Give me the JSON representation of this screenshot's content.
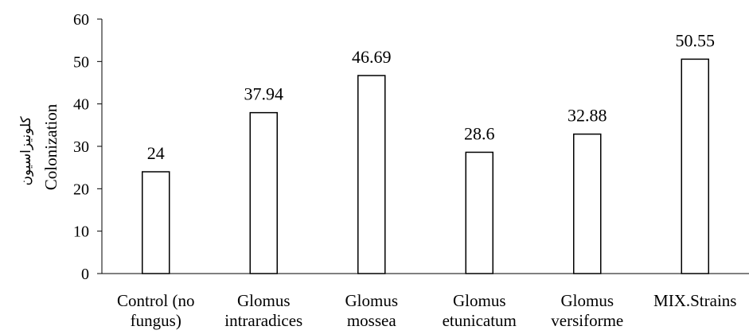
{
  "chart_data": {
    "type": "bar",
    "categories": [
      [
        "Control (no",
        "fungus)"
      ],
      [
        "Glomus",
        "intraradices"
      ],
      [
        "Glomus",
        "mossea"
      ],
      [
        "Glomus",
        "etunicatum"
      ],
      [
        "Glomus",
        "versiforme"
      ],
      [
        "MIX.Strains"
      ]
    ],
    "values": [
      24,
      37.94,
      46.69,
      28.6,
      32.88,
      50.55
    ],
    "data_labels": [
      "24",
      "37.94",
      "46.69",
      "28.6",
      "32.88",
      "50.55"
    ],
    "ylabel": "Colonization",
    "ylabel_secondary": "کلونیزاسیون",
    "ylim": [
      0,
      60
    ],
    "yticks": [
      0,
      10,
      20,
      30,
      40,
      50,
      60
    ],
    "grid": false,
    "bar_fill": "#ffffff",
    "bar_stroke": "#000000"
  }
}
